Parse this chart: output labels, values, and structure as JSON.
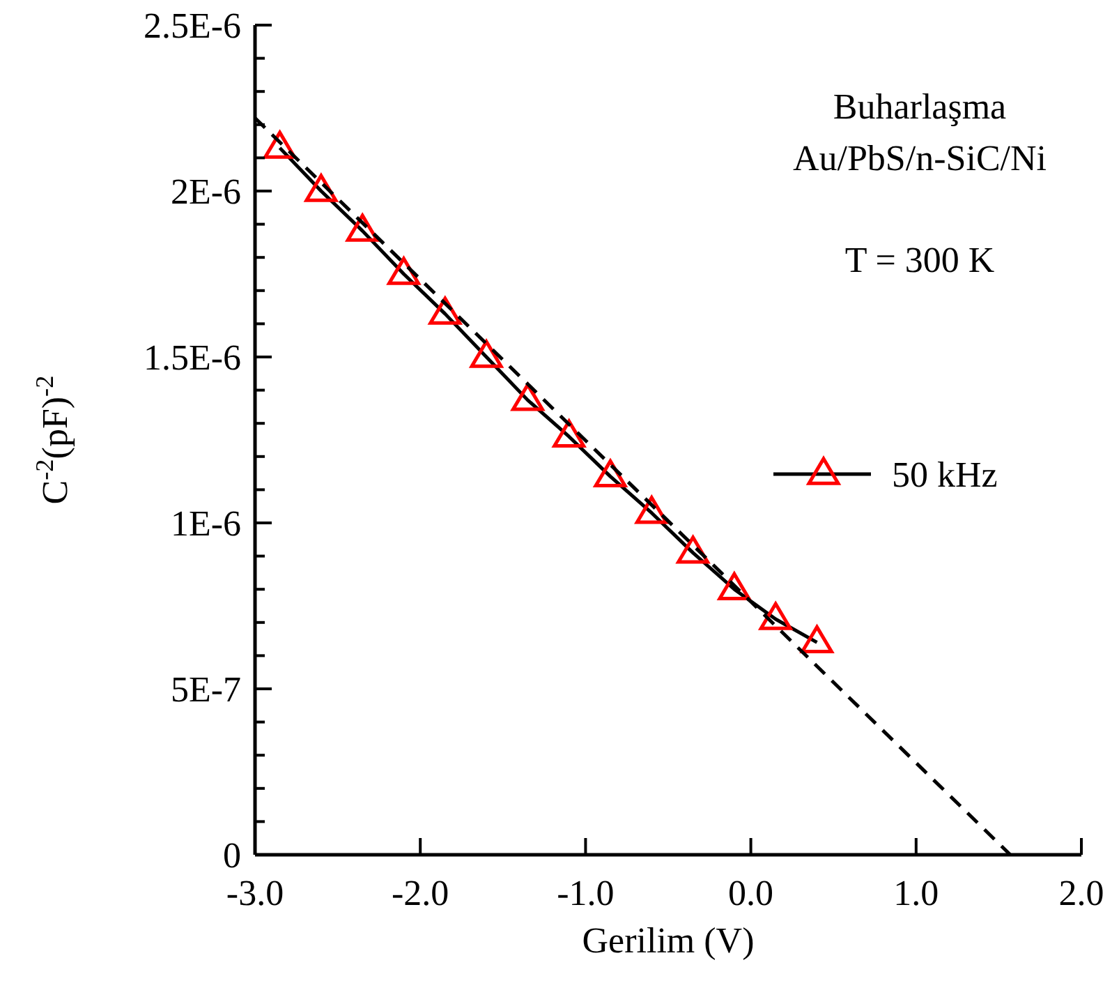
{
  "chart_data": {
    "type": "line",
    "xlabel": "Gerilim (V)",
    "ylabel": "C$^{-2}$(pF)$^{-2}$",
    "annotations": [
      "Buharlaşma",
      "Au/PbS/n-SiC/Ni",
      "T = 300 K"
    ],
    "xlim": [
      -3.0,
      2.0
    ],
    "xticks": [
      {
        "value": -3,
        "label": "-3.0"
      },
      {
        "value": -2,
        "label": "-2.0"
      },
      {
        "value": -1,
        "label": "-1.0"
      },
      {
        "value": 0,
        "label": "0.0"
      },
      {
        "value": 1,
        "label": "1.0"
      },
      {
        "value": 2,
        "label": "2.0"
      }
    ],
    "ylim": [
      0,
      2.5e-06
    ],
    "yticks": [
      0,
      {
        "value": 1e-07,
        "label": null
      },
      {
        "value": 2e-07,
        "label": null
      },
      {
        "value": 3e-07,
        "label": null
      },
      {
        "value": 4e-07,
        "label": null
      },
      {
        "value": 5e-07,
        "label": "5E-7"
      },
      {
        "value": 6e-07,
        "label": null
      },
      {
        "value": 7e-07,
        "label": null
      },
      {
        "value": 8e-07,
        "label": null
      },
      {
        "value": 9e-07,
        "label": null
      },
      {
        "value": 1e-06,
        "label": "1E-6"
      },
      {
        "value": 1.1e-06,
        "label": null
      },
      {
        "value": 1.2e-06,
        "label": null
      },
      {
        "value": 1.3e-06,
        "label": null
      },
      {
        "value": 1.4e-06,
        "label": null
      },
      {
        "value": 1.5e-06,
        "label": "1.5E-6"
      },
      {
        "value": 1.6e-06,
        "label": null
      },
      {
        "value": 1.7e-06,
        "label": null
      },
      {
        "value": 1.8e-06,
        "label": null
      },
      {
        "value": 1.9e-06,
        "label": null
      },
      {
        "value": 2e-06,
        "label": "2E-6"
      },
      {
        "value": 2.1e-06,
        "label": null
      },
      {
        "value": 2.2e-06,
        "label": null
      },
      {
        "value": 2.3e-06,
        "label": null
      },
      {
        "value": 2.4e-06,
        "label": null
      },
      {
        "value": 2.5e-06,
        "label": "2.5E-6"
      }
    ],
    "grid": false,
    "legend": "right",
    "series": [
      {
        "name": "50 kHz",
        "color": "#ff0000",
        "marker": "triangle",
        "line_style": "solid",
        "x": [
          -2.85,
          -2.6,
          -2.35,
          -2.1,
          -1.85,
          -1.6,
          -1.35,
          -1.1,
          -0.85,
          -0.6,
          -0.35,
          -0.1,
          0.15,
          0.4
        ],
        "values": [
          2.13e-06,
          2e-06,
          1.88e-06,
          1.75e-06,
          1.63e-06,
          1.5e-06,
          1.37e-06,
          1.26e-06,
          1.14e-06,
          1.03e-06,
          9.1e-07,
          8e-07,
          7.1e-07,
          6.4e-07
        ]
      },
      {
        "color": "#000000",
        "marker": "none",
        "line_style": "dashed",
        "x": [
          -3.0,
          1.57
        ],
        "values": [
          2.22e-06,
          0
        ]
      }
    ]
  }
}
